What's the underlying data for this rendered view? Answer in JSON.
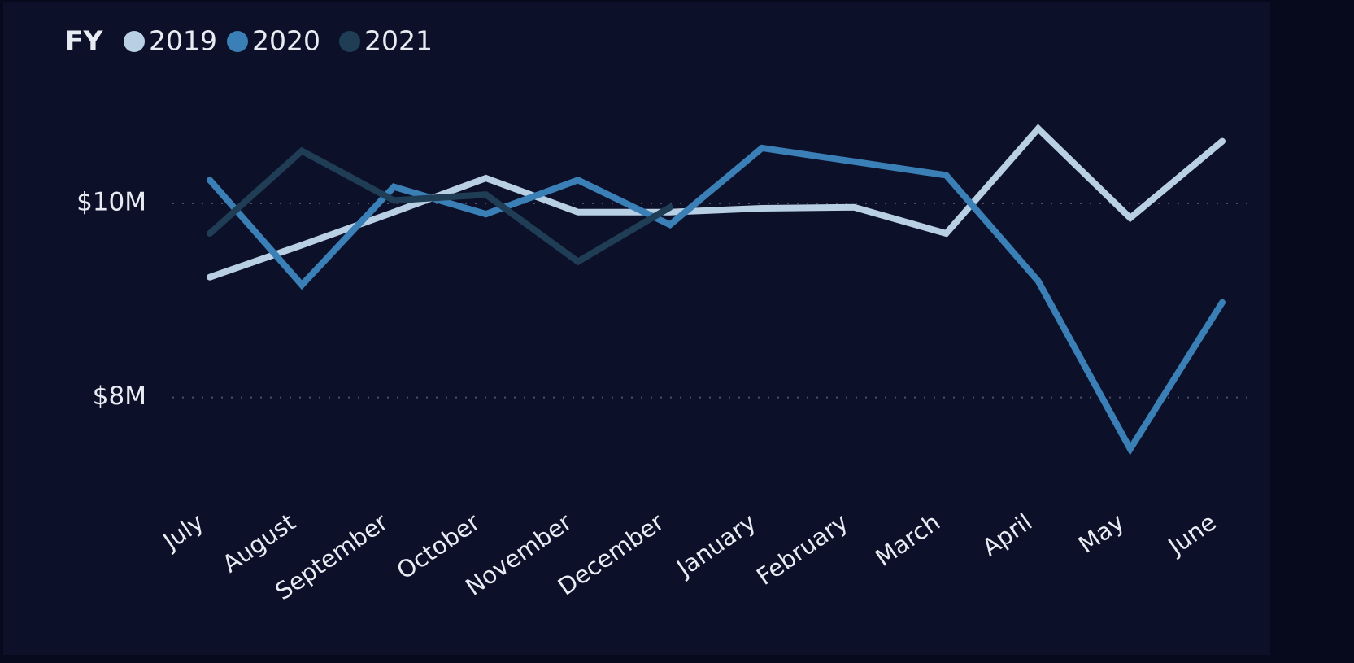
{
  "chart_data": {
    "type": "line",
    "legend_title": "FY",
    "categories": [
      "July",
      "August",
      "September",
      "October",
      "November",
      "December",
      "January",
      "February",
      "March",
      "April",
      "May",
      "June"
    ],
    "series": [
      {
        "name": "2019",
        "color": "#b9d0e4",
        "values": [
          9240000,
          9570000,
          9910000,
          10260000,
          9910000,
          9910000,
          9950000,
          9960000,
          9690000,
          10770000,
          9850000,
          10640000
        ]
      },
      {
        "name": "2020",
        "color": "#3a7fb5",
        "values": [
          10240000,
          9160000,
          10170000,
          9890000,
          10240000,
          9780000,
          10570000,
          10430000,
          10290000,
          9200000,
          7470000,
          8980000
        ]
      },
      {
        "name": "2021",
        "color": "#1f3d54",
        "values": [
          9690000,
          10540000,
          10030000,
          10090000,
          9400000,
          9960000,
          null,
          null,
          null,
          null,
          null,
          null
        ]
      }
    ],
    "ylim": [
      7000000,
      11200000
    ],
    "yticks": [
      {
        "value": 8000000,
        "label": "$8M"
      },
      {
        "value": 10000000,
        "label": "$10M"
      }
    ],
    "grid": true,
    "legend": "top-left"
  }
}
